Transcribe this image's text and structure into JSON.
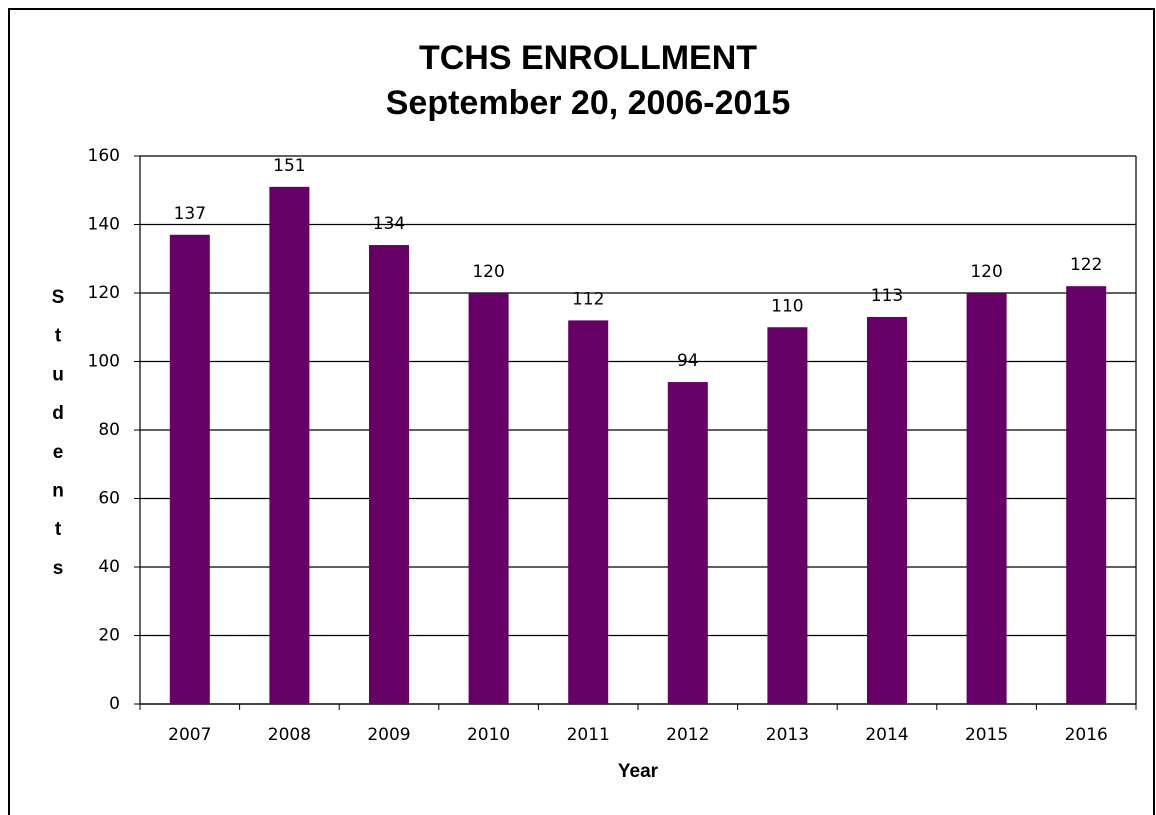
{
  "chart_data": {
    "type": "bar",
    "title": "TCHS ENROLLMENT",
    "subtitle": "September 20, 2006-2015",
    "x_label": "Year",
    "y_label": "Students",
    "categories": [
      "2007",
      "2008",
      "2009",
      "2010",
      "2011",
      "2012",
      "2013",
      "2014",
      "2015",
      "2016"
    ],
    "values": [
      137,
      151,
      134,
      120,
      112,
      94,
      110,
      113,
      120,
      122
    ],
    "color": "#660066",
    "ylim": [
      0,
      160
    ],
    "yticks": [
      0,
      20,
      40,
      60,
      80,
      100,
      120,
      140,
      160
    ],
    "grid": true
  }
}
